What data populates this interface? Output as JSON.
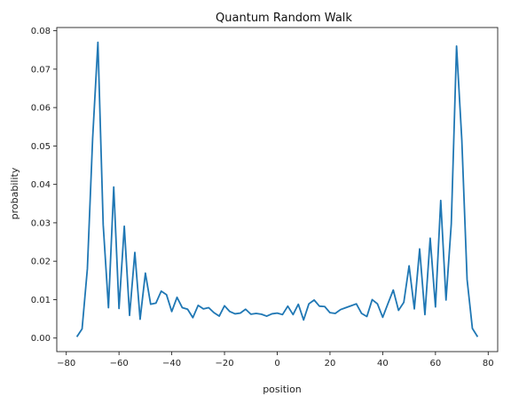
{
  "chart_data": {
    "type": "line",
    "title": "Quantum Random Walk",
    "xlabel": "position",
    "ylabel": "probability",
    "xlim": [
      -80,
      80
    ],
    "ylim": [
      0,
      0.08
    ],
    "xticks": [
      -80,
      -60,
      -40,
      -20,
      0,
      20,
      40,
      60,
      80
    ],
    "yticks": [
      0.0,
      0.01,
      0.02,
      0.03,
      0.04,
      0.05,
      0.06,
      0.07,
      0.08
    ],
    "ytick_labels": [
      "0.00",
      "0.01",
      "0.02",
      "0.03",
      "0.04",
      "0.05",
      "0.06",
      "0.07",
      "0.08"
    ],
    "grid": false,
    "series_color": "#1f77b4",
    "x": [
      -76,
      -74,
      -72,
      -70,
      -68,
      -66,
      -64,
      -62,
      -60,
      -58,
      -56,
      -54,
      -52,
      -50,
      -48,
      -46,
      -44,
      -42,
      -40,
      -38,
      -36,
      -34,
      -32,
      -30,
      -28,
      -26,
      -24,
      -22,
      -20,
      -18,
      -16,
      -14,
      -12,
      -10,
      -8,
      -6,
      -4,
      -2,
      0,
      2,
      4,
      6,
      8,
      10,
      12,
      14,
      16,
      18,
      20,
      22,
      24,
      26,
      28,
      30,
      32,
      34,
      36,
      38,
      40,
      42,
      44,
      46,
      48,
      50,
      52,
      54,
      56,
      58,
      60,
      62,
      64,
      66,
      68,
      70,
      72,
      74,
      76
    ],
    "y": [
      0.0003,
      0.0024,
      0.018,
      0.052,
      0.077,
      0.0295,
      0.0079,
      0.0393,
      0.0077,
      0.0291,
      0.0059,
      0.0223,
      0.0049,
      0.0169,
      0.0088,
      0.0091,
      0.0122,
      0.0113,
      0.0069,
      0.0106,
      0.0079,
      0.0075,
      0.0053,
      0.0085,
      0.0076,
      0.0079,
      0.0066,
      0.0057,
      0.0084,
      0.0069,
      0.0063,
      0.0065,
      0.0075,
      0.0062,
      0.0064,
      0.0062,
      0.0057,
      0.0063,
      0.0065,
      0.0061,
      0.0083,
      0.0061,
      0.0088,
      0.0047,
      0.0089,
      0.0099,
      0.0083,
      0.0082,
      0.0066,
      0.0064,
      0.0074,
      0.0079,
      0.0084,
      0.0089,
      0.0064,
      0.0056,
      0.01,
      0.0089,
      0.0054,
      0.009,
      0.0125,
      0.0072,
      0.0093,
      0.0188,
      0.0076,
      0.0232,
      0.0061,
      0.026,
      0.0081,
      0.0358,
      0.0099,
      0.0297,
      0.076,
      0.0515,
      0.0152,
      0.0025,
      0.0003
    ]
  }
}
